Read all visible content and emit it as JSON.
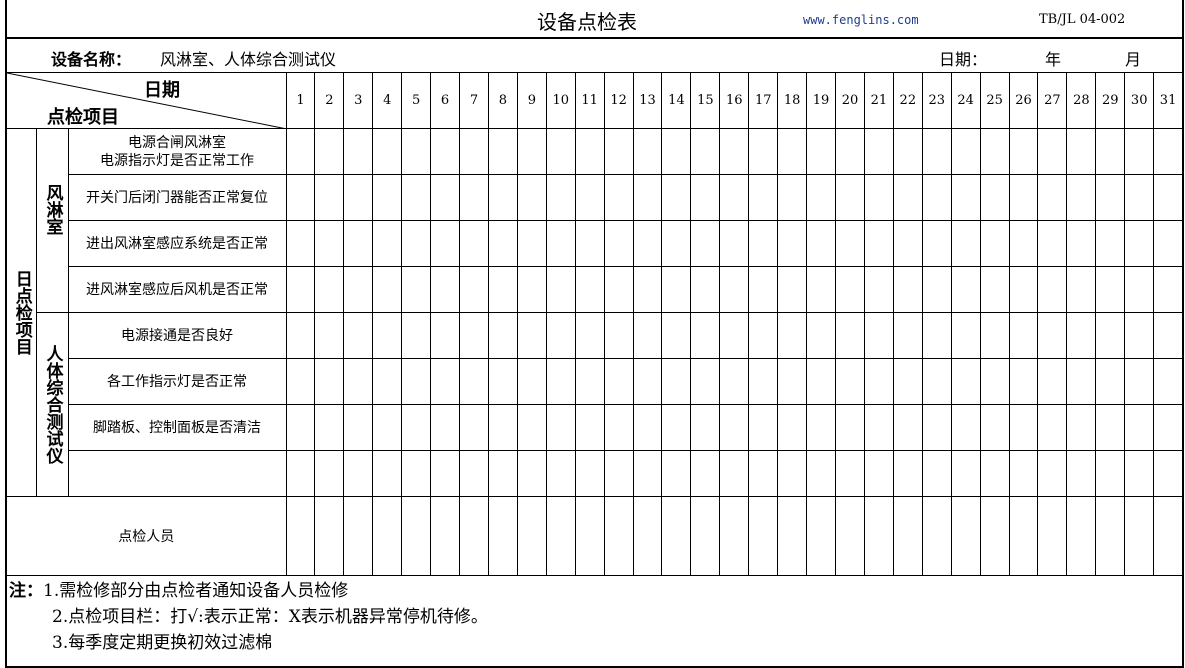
{
  "title": "设备点检表",
  "website": "www.fenglins.com",
  "doc_code": "TB/JL 04-002",
  "equipment_label": "设备名称：",
  "equipment_value": "风淋室、人体综合测试仪",
  "date_label": "日期：",
  "year_label": "年",
  "month_label": "月",
  "header": {
    "date": "日期",
    "item": "点检项目"
  },
  "days": [
    "1",
    "2",
    "3",
    "4",
    "5",
    "6",
    "7",
    "8",
    "9",
    "10",
    "11",
    "12",
    "13",
    "14",
    "15",
    "16",
    "17",
    "18",
    "19",
    "20",
    "21",
    "22",
    "23",
    "24",
    "25",
    "26",
    "27",
    "28",
    "29",
    "30",
    "31"
  ],
  "category": "日点检项目",
  "groups": [
    {
      "name": "风淋室",
      "items": [
        "电源合闸风淋室\n电源指示灯是否正常工作",
        "开关门后闭门器能否正常复位",
        "进出风淋室感应系统是否正常",
        "进风淋室感应后风机是否正常"
      ]
    },
    {
      "name": "人体综合测试仪",
      "items": [
        "电源接通是否良好",
        "各工作指示灯是否正常",
        "脚踏板、控制面板是否清洁",
        ""
      ]
    }
  ],
  "inspector_label": "点检人员",
  "notes": {
    "label": "注：",
    "lines": [
      "1.需检修部分由点检者通知设备人员检修",
      "2.点检项目栏：打√:表示正常：X表示机器异常停机待修。",
      "3.每季度定期更换初效过滤棉"
    ]
  }
}
